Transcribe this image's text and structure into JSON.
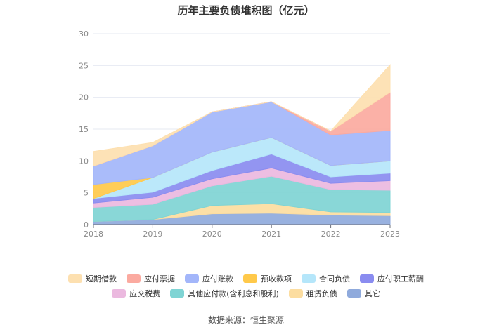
{
  "chart_data": {
    "type": "area",
    "stacked": true,
    "title": "历年主要负债堆积图（亿元）",
    "x": [
      "2018",
      "2019",
      "2020",
      "2021",
      "2022",
      "2023"
    ],
    "ylim": [
      0,
      30
    ],
    "yticks": [
      "0",
      "5",
      "10",
      "15",
      "20",
      "25",
      "30"
    ],
    "grid": true,
    "legend_position": "bottom",
    "series": [
      {
        "name": "其它",
        "color": "#8FAADC",
        "values": [
          0.5,
          0.8,
          1.7,
          1.8,
          1.5,
          1.4
        ]
      },
      {
        "name": "租赁负债",
        "color": "#FCDDA0",
        "values": [
          0,
          0,
          1.3,
          1.5,
          0.5,
          0.5
        ]
      },
      {
        "name": "其他应付款(含利息和股利)",
        "color": "#7FD4D4",
        "values": [
          2.2,
          2.4,
          3.1,
          4.3,
          3.5,
          3.5
        ]
      },
      {
        "name": "应交税费",
        "color": "#EBB9DF",
        "values": [
          0.7,
          1.1,
          1.1,
          1.3,
          1.0,
          1.5
        ]
      },
      {
        "name": "应付职工薪酬",
        "color": "#8A8CF0",
        "values": [
          0.7,
          0.8,
          1.3,
          2.2,
          1.0,
          1.2
        ]
      },
      {
        "name": "合同负债",
        "color": "#B5E6FA",
        "values": [
          0,
          2.3,
          2.9,
          2.6,
          1.8,
          1.9
        ]
      },
      {
        "name": "预收款项",
        "color": "#FFC94A",
        "values": [
          2.2,
          0,
          0,
          0,
          0,
          0
        ]
      },
      {
        "name": "应付账款",
        "color": "#A3B6FA",
        "values": [
          2.9,
          5.0,
          6.3,
          5.6,
          4.8,
          4.8
        ]
      },
      {
        "name": "应付票据",
        "color": "#FBAAA0",
        "values": [
          0,
          0,
          0,
          0,
          0.6,
          6.0
        ]
      },
      {
        "name": "短期借款",
        "color": "#FDE0B0",
        "values": [
          2.3,
          0.5,
          0,
          0,
          0,
          4.3
        ]
      }
    ],
    "legend_order": [
      "短期借款",
      "应付票据",
      "应付账款",
      "预收款项",
      "合同负债",
      "应付职工薪酬",
      "应交税费",
      "其他应付款(含利息和股利)",
      "租赁负债",
      "其它"
    ],
    "source": "数据来源：恒生聚源"
  }
}
